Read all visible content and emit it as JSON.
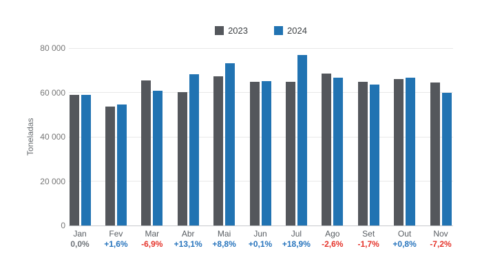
{
  "chart_data": {
    "type": "bar",
    "title": "",
    "ylabel": "Toneladas",
    "ylim": [
      0,
      80000
    ],
    "grid": true,
    "legend_position": "top-center",
    "yticks": [
      {
        "value": 0,
        "label": "0"
      },
      {
        "value": 20000,
        "label": "20 000"
      },
      {
        "value": 40000,
        "label": "40 000"
      },
      {
        "value": 60000,
        "label": "60 000"
      },
      {
        "value": 80000,
        "label": "80 000"
      }
    ],
    "categories": [
      "Jan",
      "Fev",
      "Mar",
      "Abr",
      "Mai",
      "Jun",
      "Jul",
      "Ago",
      "Set",
      "Out",
      "Nov"
    ],
    "series": [
      {
        "name": "2023",
        "color": "#54575c",
        "values": [
          59000,
          53700,
          65300,
          60300,
          67300,
          64900,
          64800,
          68600,
          64700,
          66200,
          64500
        ]
      },
      {
        "name": "2024",
        "color": "#2173b2",
        "values": [
          59000,
          54600,
          60800,
          68200,
          73200,
          65000,
          77000,
          66800,
          63600,
          66700,
          59900
        ]
      }
    ],
    "changes": [
      {
        "text": "0,0%",
        "color": "#6d7278"
      },
      {
        "text": "+1,6%",
        "color": "#2774bd"
      },
      {
        "text": "-6,9%",
        "color": "#e5332a"
      },
      {
        "text": "+13,1%",
        "color": "#2774bd"
      },
      {
        "text": "+8,8%",
        "color": "#2774bd"
      },
      {
        "text": "+0,1%",
        "color": "#2774bd"
      },
      {
        "text": "+18,9%",
        "color": "#2774bd"
      },
      {
        "text": "-2,6%",
        "color": "#e5332a"
      },
      {
        "text": "-1,7%",
        "color": "#e5332a"
      },
      {
        "text": "+0,8%",
        "color": "#2774bd"
      },
      {
        "text": "-7,2%",
        "color": "#e5332a"
      }
    ]
  },
  "colors": {
    "background": "#ffffff",
    "gridline": "#e8e8e8",
    "baseline": "#c6c9cc",
    "tick_label": "#757575",
    "month_label": "#565b60"
  }
}
